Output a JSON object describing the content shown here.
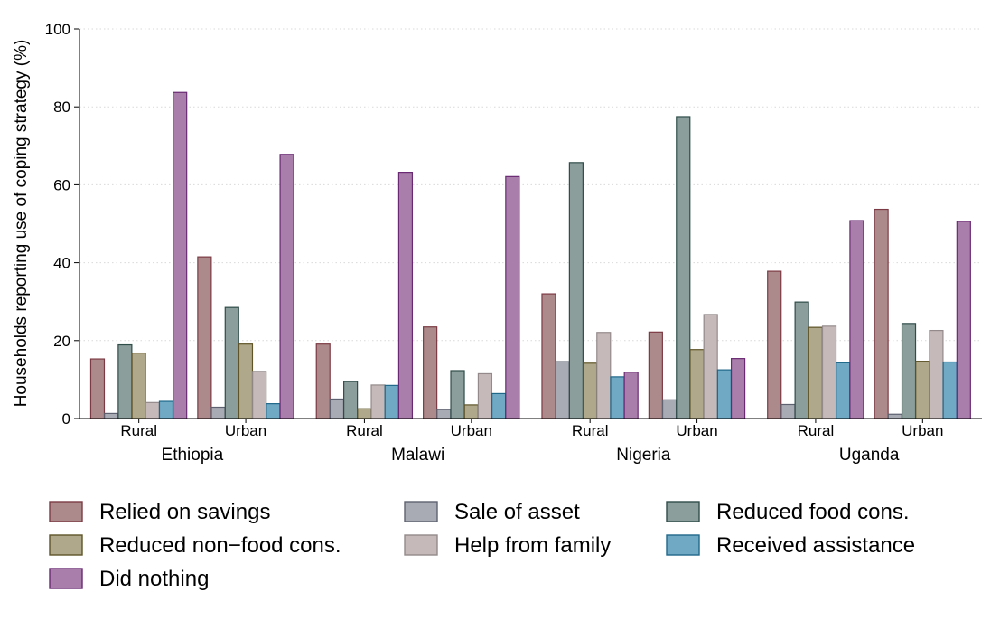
{
  "chart_data": {
    "type": "bar",
    "ylabel": "Households reporting use of coping strategy (%)",
    "ylim": [
      0,
      100
    ],
    "yticks": [
      0,
      20,
      40,
      60,
      80,
      100
    ],
    "grid": true,
    "legend_position": "bottom",
    "groups": [
      {
        "label": "Ethiopia",
        "subgroups": [
          "Rural",
          "Urban"
        ]
      },
      {
        "label": "Malawi",
        "subgroups": [
          "Rural",
          "Urban"
        ]
      },
      {
        "label": "Nigeria",
        "subgroups": [
          "Rural",
          "Urban"
        ]
      },
      {
        "label": "Uganda",
        "subgroups": [
          "Rural",
          "Urban"
        ]
      }
    ],
    "categories": [
      "Ethiopia Rural",
      "Ethiopia Urban",
      "Malawi Rural",
      "Malawi Urban",
      "Nigeria Rural",
      "Nigeria Urban",
      "Uganda Rural",
      "Uganda Urban"
    ],
    "series": [
      {
        "name": "Relied on savings",
        "fill": "#ac8a8b",
        "stroke": "#7c3b44",
        "values": [
          15.3,
          41.5,
          19.1,
          23.5,
          32.0,
          22.2,
          37.8,
          53.7
        ]
      },
      {
        "name": "Sale of asset",
        "fill": "#a9abb4",
        "stroke": "#5e6270",
        "values": [
          1.3,
          2.9,
          5.0,
          2.3,
          14.6,
          4.8,
          3.6,
          1.1
        ]
      },
      {
        "name": "Reduced food cons.",
        "fill": "#8c9e9b",
        "stroke": "#2f4d49",
        "values": [
          18.9,
          28.5,
          9.5,
          12.3,
          65.7,
          77.5,
          29.9,
          24.4
        ]
      },
      {
        "name": "Reduced non−food cons.",
        "fill": "#b0a88a",
        "stroke": "#5e5428",
        "values": [
          16.8,
          19.1,
          2.5,
          3.5,
          14.2,
          17.7,
          23.4,
          14.7
        ]
      },
      {
        "name": "Help from family",
        "fill": "#c6b9b9",
        "stroke": "#948a8b",
        "values": [
          4.1,
          12.1,
          8.6,
          11.5,
          22.1,
          26.7,
          23.7,
          22.6
        ]
      },
      {
        "name": "Received assistance",
        "fill": "#70a9c4",
        "stroke": "#20688a",
        "values": [
          4.4,
          3.8,
          8.5,
          6.4,
          10.7,
          12.5,
          14.3,
          14.5
        ]
      },
      {
        "name": "Did nothing",
        "fill": "#aa7eab",
        "stroke": "#6a2a73",
        "values": [
          83.7,
          67.8,
          63.2,
          62.1,
          11.9,
          15.4,
          50.8,
          50.6
        ]
      }
    ],
    "legend_order": [
      0,
      1,
      2,
      3,
      4,
      5,
      6
    ]
  }
}
